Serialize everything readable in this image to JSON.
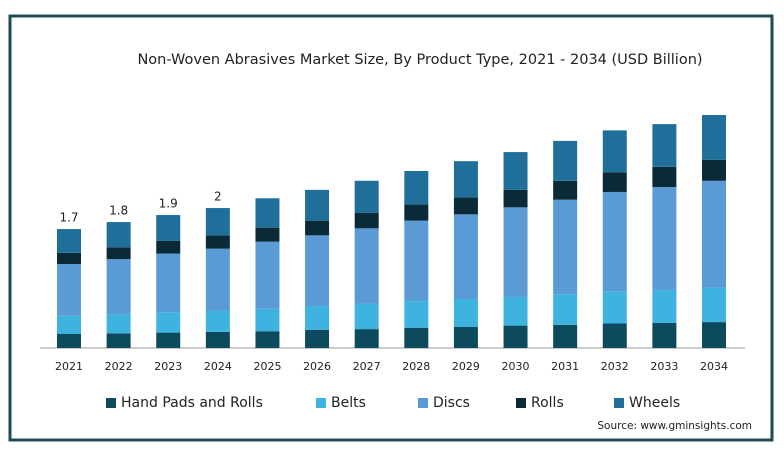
{
  "chart_data": {
    "type": "stacked-bar",
    "title": "Non-Woven Abrasives Market Size, By Product Type, 2021 - 2034 (USD Billion)",
    "categories": [
      "2021",
      "2022",
      "2023",
      "2024",
      "2025",
      "2026",
      "2027",
      "2028",
      "2029",
      "2030",
      "2031",
      "2032",
      "2033",
      "2034"
    ],
    "series": [
      {
        "name": "Hand Pads and Rolls",
        "color": "#0d4a5e",
        "values": [
          0.2,
          0.21,
          0.22,
          0.23,
          0.24,
          0.26,
          0.27,
          0.29,
          0.3,
          0.32,
          0.33,
          0.35,
          0.36,
          0.37
        ]
      },
      {
        "name": "Belts",
        "color": "#3fb3e0",
        "values": [
          0.26,
          0.27,
          0.29,
          0.3,
          0.32,
          0.34,
          0.36,
          0.38,
          0.4,
          0.41,
          0.44,
          0.46,
          0.47,
          0.49
        ]
      },
      {
        "name": "Discs",
        "color": "#5a9bd6",
        "values": [
          0.74,
          0.79,
          0.84,
          0.89,
          0.96,
          1.01,
          1.08,
          1.15,
          1.21,
          1.28,
          1.35,
          1.42,
          1.47,
          1.53
        ]
      },
      {
        "name": "Rolls",
        "color": "#0a2a38",
        "values": [
          0.16,
          0.17,
          0.18,
          0.19,
          0.2,
          0.21,
          0.22,
          0.23,
          0.24,
          0.25,
          0.27,
          0.28,
          0.29,
          0.3
        ]
      },
      {
        "name": "Wheels",
        "color": "#1f6f9a",
        "values": [
          0.34,
          0.36,
          0.37,
          0.39,
          0.42,
          0.44,
          0.46,
          0.48,
          0.52,
          0.54,
          0.57,
          0.6,
          0.61,
          0.64
        ]
      }
    ],
    "totals": [
      1.7,
      1.8,
      1.9,
      2
    ],
    "source": "Source: www.gminsights.com"
  }
}
